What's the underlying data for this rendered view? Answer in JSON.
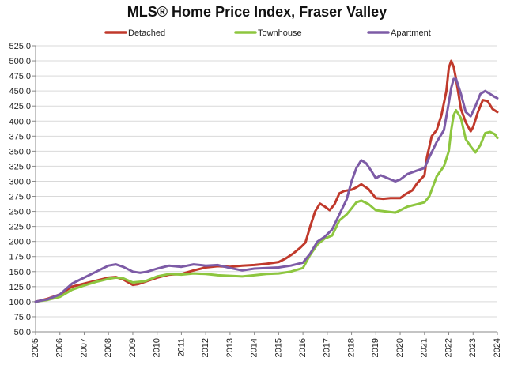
{
  "chart_data": {
    "type": "line",
    "title": "MLS® Home Price Index, Fraser Valley",
    "xlabel": "",
    "ylabel": "",
    "ylim": [
      50,
      525
    ],
    "xlim": [
      2005,
      2024
    ],
    "legend_position": "top-center",
    "grid": true,
    "y_ticks": [
      "50.0",
      "75.0",
      "100.0",
      "125.0",
      "150.0",
      "175.0",
      "200.0",
      "225.0",
      "250.0",
      "275.0",
      "300.0",
      "325.0",
      "350.0",
      "375.0",
      "400.0",
      "425.0",
      "450.0",
      "475.0",
      "500.0",
      "525.0"
    ],
    "x_ticks": [
      "2005",
      "2006",
      "2007",
      "2008",
      "2009",
      "2010",
      "2011",
      "2012",
      "2013",
      "2014",
      "2015",
      "2016",
      "2017",
      "2018",
      "2019",
      "2020",
      "2021",
      "2022",
      "2023",
      "2024"
    ],
    "series": [
      {
        "name": "Detached",
        "color": "#c0392b",
        "x": [
          2005.0,
          2005.5,
          2006.0,
          2006.5,
          2007.0,
          2007.5,
          2008.0,
          2008.3,
          2008.6,
          2009.0,
          2009.2,
          2009.5,
          2010.0,
          2010.5,
          2011.0,
          2011.5,
          2012.0,
          2012.5,
          2013.0,
          2013.5,
          2014.0,
          2014.5,
          2015.0,
          2015.3,
          2015.6,
          2015.9,
          2016.1,
          2016.3,
          2016.5,
          2016.7,
          2016.9,
          2017.1,
          2017.3,
          2017.5,
          2017.7,
          2018.0,
          2018.2,
          2018.4,
          2018.7,
          2019.0,
          2019.3,
          2019.6,
          2020.0,
          2020.2,
          2020.5,
          2020.7,
          2021.0,
          2021.1,
          2021.3,
          2021.5,
          2021.7,
          2021.9,
          2022.0,
          2022.1,
          2022.2,
          2022.3,
          2022.5,
          2022.7,
          2022.9,
          2023.0,
          2023.2,
          2023.4,
          2023.6,
          2023.8,
          2024.0
        ],
        "values": [
          100,
          105,
          112,
          125,
          130,
          135,
          140,
          141,
          137,
          128,
          129,
          133,
          140,
          145,
          146,
          152,
          157,
          159,
          158,
          160,
          161,
          163,
          166,
          172,
          180,
          190,
          198,
          225,
          250,
          263,
          258,
          252,
          262,
          280,
          284,
          286,
          290,
          295,
          287,
          272,
          271,
          272,
          272,
          278,
          285,
          297,
          310,
          340,
          375,
          385,
          410,
          450,
          488,
          500,
          490,
          470,
          420,
          398,
          383,
          390,
          415,
          435,
          433,
          420,
          415
        ]
      },
      {
        "name": "Townhouse",
        "color": "#8dc63f",
        "x": [
          2005.0,
          2005.5,
          2006.0,
          2006.5,
          2007.0,
          2007.5,
          2008.0,
          2008.3,
          2008.6,
          2009.0,
          2009.5,
          2010.0,
          2010.5,
          2011.0,
          2011.5,
          2012.0,
          2012.5,
          2013.0,
          2013.5,
          2014.0,
          2014.5,
          2015.0,
          2015.5,
          2016.0,
          2016.3,
          2016.6,
          2016.9,
          2017.2,
          2017.5,
          2017.8,
          2018.0,
          2018.2,
          2018.4,
          2018.7,
          2019.0,
          2019.4,
          2019.8,
          2020.0,
          2020.3,
          2020.7,
          2021.0,
          2021.2,
          2021.5,
          2021.8,
          2022.0,
          2022.1,
          2022.2,
          2022.3,
          2022.5,
          2022.7,
          2022.9,
          2023.1,
          2023.3,
          2023.5,
          2023.7,
          2023.9,
          2024.0
        ],
        "values": [
          100,
          103,
          108,
          120,
          127,
          133,
          138,
          140,
          139,
          132,
          134,
          142,
          146,
          145,
          147,
          146,
          144,
          143,
          142,
          144,
          146,
          147,
          150,
          156,
          178,
          195,
          205,
          210,
          235,
          245,
          255,
          265,
          268,
          262,
          252,
          250,
          248,
          252,
          258,
          262,
          265,
          275,
          308,
          325,
          350,
          385,
          410,
          418,
          405,
          370,
          358,
          348,
          360,
          380,
          382,
          378,
          372
        ]
      },
      {
        "name": "Apartment",
        "color": "#7d5ba6",
        "x": [
          2005.0,
          2005.5,
          2006.0,
          2006.5,
          2007.0,
          2007.5,
          2008.0,
          2008.3,
          2008.6,
          2009.0,
          2009.3,
          2009.6,
          2010.0,
          2010.5,
          2011.0,
          2011.5,
          2012.0,
          2012.5,
          2013.0,
          2013.5,
          2014.0,
          2014.5,
          2015.0,
          2015.5,
          2016.0,
          2016.3,
          2016.6,
          2016.9,
          2017.2,
          2017.5,
          2017.8,
          2018.0,
          2018.2,
          2018.4,
          2018.6,
          2018.8,
          2019.0,
          2019.2,
          2019.5,
          2019.8,
          2020.0,
          2020.3,
          2020.7,
          2021.0,
          2021.2,
          2021.5,
          2021.8,
          2022.0,
          2022.1,
          2022.2,
          2022.3,
          2022.5,
          2022.7,
          2022.9,
          2023.1,
          2023.3,
          2023.5,
          2023.7,
          2023.9,
          2024.0
        ],
        "values": [
          100,
          104,
          112,
          130,
          140,
          150,
          160,
          162,
          158,
          150,
          148,
          150,
          155,
          160,
          158,
          162,
          160,
          161,
          156,
          152,
          155,
          156,
          157,
          160,
          165,
          180,
          200,
          208,
          220,
          245,
          270,
          300,
          322,
          335,
          330,
          318,
          305,
          310,
          305,
          300,
          303,
          312,
          318,
          322,
          340,
          365,
          385,
          430,
          455,
          470,
          470,
          445,
          415,
          408,
          425,
          445,
          450,
          445,
          440,
          438
        ]
      }
    ]
  }
}
